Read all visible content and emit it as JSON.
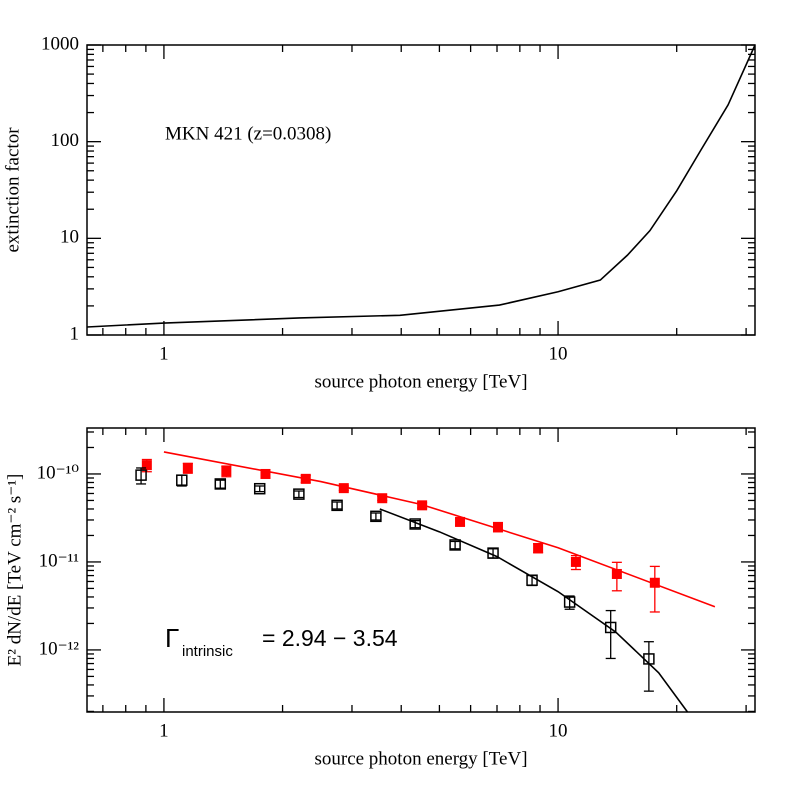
{
  "chart_data": [
    {
      "type": "line",
      "xlabel": "source photon energy [TeV]",
      "ylabel": "extinction factor",
      "annotation": "MKN 421 (z=0.0308)",
      "xlog": true,
      "ylog": true,
      "xlim": [
        0.638,
        31.6
      ],
      "ylim": [
        1,
        1000
      ],
      "xticks": [
        1,
        10
      ],
      "yticks": [
        1,
        10,
        100,
        1000
      ],
      "xminorticks": [
        0.7,
        0.8,
        0.9,
        2,
        3,
        4,
        5,
        6,
        7,
        8,
        9,
        20,
        30
      ],
      "yminorticks": [
        2,
        3,
        4,
        5,
        6,
        7,
        8,
        9,
        20,
        30,
        40,
        50,
        60,
        70,
        80,
        90,
        200,
        300,
        400,
        500,
        600,
        700,
        800,
        900
      ],
      "series": [
        {
          "mark": "line",
          "color": "#000000",
          "x": [
            0.638,
            1,
            2.21,
            3.97,
            7.1,
            10,
            12.8,
            15,
            17.1,
            20,
            23,
            27,
            31.6
          ],
          "values": [
            1.21,
            1.33,
            1.5,
            1.6,
            2.04,
            2.8,
            3.7,
            6.7,
            12,
            31,
            81,
            240,
            1000
          ]
        }
      ]
    },
    {
      "type": "scatter",
      "xlabel": "source photon energy [TeV]",
      "ylabel": "E² dN/dE  [TeV cm⁻² s⁻¹]",
      "annotation": {
        "symbol": "Γ",
        "subscript": "intrinsic",
        "text": "= 2.94 − 3.54"
      },
      "xlog": true,
      "ylog": true,
      "xlim": [
        0.638,
        31.6
      ],
      "ylim": [
        1.97e-13,
        3.33e-10
      ],
      "xticks": [
        1,
        10
      ],
      "yticks": [
        {
          "value": 1e-12,
          "label": "10⁻¹²"
        },
        {
          "value": 1e-11,
          "label": "10⁻¹¹"
        },
        {
          "value": 1e-10,
          "label": "10⁻¹⁰"
        }
      ],
      "xminorticks": [
        0.7,
        0.8,
        0.9,
        2,
        3,
        4,
        5,
        6,
        7,
        8,
        9,
        20,
        30
      ],
      "yminorticks": [
        2e-13,
        3e-13,
        4e-13,
        5e-13,
        6e-13,
        7e-13,
        8e-13,
        9e-13,
        2e-12,
        3e-12,
        4e-12,
        5e-12,
        6e-12,
        7e-12,
        8e-12,
        9e-12,
        2e-11,
        3e-11,
        4e-11,
        5e-11,
        6e-11,
        7e-11,
        8e-11,
        9e-11,
        2e-10,
        3e-10
      ],
      "series": [
        {
          "mark": "filled-square",
          "color": "#ff0000",
          "x": [
            0.905,
            1.15,
            1.44,
            1.81,
            2.29,
            2.86,
            3.58,
            4.52,
            5.64,
            7.04,
            8.9,
            11.1,
            14.1,
            17.6
          ],
          "values": [
            1.26e-10,
            1.17e-10,
            1.08e-10,
            1e-10,
            8.8e-11,
            6.9e-11,
            5.3e-11,
            4.4e-11,
            2.85e-11,
            2.5e-11,
            1.44e-11,
            1e-11,
            7.3e-12,
            5.8e-12
          ],
          "errors": [
            2e-11,
            1.5e-11,
            1.5e-11,
            1e-11,
            8e-12,
            4e-12,
            3e-12,
            3e-12,
            2.5e-12,
            3e-12,
            1.7e-12,
            1.8e-12,
            2.6e-12,
            3.1e-12
          ]
        },
        {
          "mark": "open-square",
          "color": "#000000",
          "x": [
            0.875,
            1.11,
            1.39,
            1.75,
            2.2,
            2.75,
            3.45,
            4.34,
            5.48,
            6.84,
            8.59,
            10.7,
            13.6,
            17.0
          ],
          "values": [
            9.7e-11,
            8.5e-11,
            7.7e-11,
            6.8e-11,
            5.9e-11,
            4.4e-11,
            3.3e-11,
            2.7e-11,
            1.56e-11,
            1.26e-11,
            6.2e-12,
            3.5e-12,
            1.8e-12,
            7.9e-13
          ],
          "errors": [
            2e-11,
            1.2e-11,
            8e-12,
            5e-12,
            5e-12,
            4e-12,
            3e-12,
            2.5e-12,
            1.5e-12,
            1.5e-12,
            8e-13,
            6e-13,
            1e-12,
            4.5e-13
          ]
        },
        {
          "mark": "line",
          "color": "#ff0000",
          "x": [
            1,
            2.5,
            4.5,
            10,
            25
          ],
          "values": [
            1.78e-10,
            8.2e-11,
            4.5e-11,
            1.45e-11,
            3.1e-12
          ]
        },
        {
          "mark": "line",
          "color": "#000000",
          "x": [
            3.53,
            5,
            7,
            10,
            14,
            18,
            21.3
          ],
          "values": [
            4e-11,
            2.2e-11,
            1.15e-11,
            4.6e-12,
            1.6e-12,
            5.5e-13,
            1.97e-13
          ]
        }
      ]
    }
  ]
}
